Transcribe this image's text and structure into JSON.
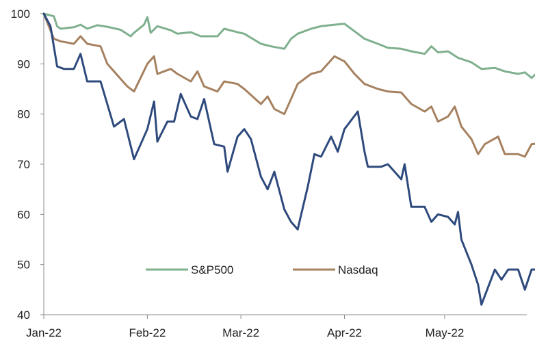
{
  "chart_data": {
    "type": "line",
    "title": "",
    "xlabel": "",
    "ylabel": "",
    "ylim": [
      40,
      100
    ],
    "yticks": [
      40,
      50,
      60,
      70,
      80,
      90,
      100
    ],
    "x_tick_labels": [
      "Jan-22",
      "Feb-22",
      "Mar-22",
      "Apr-22",
      "May-22"
    ],
    "x_tick_dates": [
      "2022-01-01",
      "2022-02-01",
      "2022-03-01",
      "2022-04-01",
      "2022-05-01"
    ],
    "grid": false,
    "legend_placement": "bottom-center, inside plot",
    "series": [
      {
        "name": "S&P500",
        "color": "#7fb08e",
        "in_legend": true,
        "points": [
          [
            "2022-01-01",
            100.0
          ],
          [
            "2022-01-04",
            99.5
          ],
          [
            "2022-01-05",
            97.5
          ],
          [
            "2022-01-06",
            97.0
          ],
          [
            "2022-01-10",
            97.3
          ],
          [
            "2022-01-12",
            97.8
          ],
          [
            "2022-01-14",
            97.0
          ],
          [
            "2022-01-17",
            97.7
          ],
          [
            "2022-01-20",
            97.4
          ],
          [
            "2022-01-24",
            96.8
          ],
          [
            "2022-01-27",
            95.5
          ],
          [
            "2022-01-28",
            96.2
          ],
          [
            "2022-01-31",
            97.8
          ],
          [
            "2022-02-01",
            99.3
          ],
          [
            "2022-02-02",
            96.2
          ],
          [
            "2022-02-04",
            97.5
          ],
          [
            "2022-02-08",
            96.7
          ],
          [
            "2022-02-10",
            96.0
          ],
          [
            "2022-02-14",
            96.3
          ],
          [
            "2022-02-17",
            95.5
          ],
          [
            "2022-02-22",
            95.5
          ],
          [
            "2022-02-24",
            97.0
          ],
          [
            "2022-02-28",
            96.3
          ],
          [
            "2022-03-02",
            96.0
          ],
          [
            "2022-03-07",
            94.0
          ],
          [
            "2022-03-10",
            93.5
          ],
          [
            "2022-03-14",
            93.0
          ],
          [
            "2022-03-16",
            95.0
          ],
          [
            "2022-03-18",
            96.0
          ],
          [
            "2022-03-22",
            97.0
          ],
          [
            "2022-03-25",
            97.5
          ],
          [
            "2022-03-29",
            97.8
          ],
          [
            "2022-04-01",
            98.0
          ],
          [
            "2022-04-04",
            96.5
          ],
          [
            "2022-04-07",
            95.0
          ],
          [
            "2022-04-11",
            94.0
          ],
          [
            "2022-04-14",
            93.2
          ],
          [
            "2022-04-18",
            93.0
          ],
          [
            "2022-04-21",
            92.5
          ],
          [
            "2022-04-25",
            92.0
          ],
          [
            "2022-04-27",
            93.5
          ],
          [
            "2022-04-29",
            92.3
          ],
          [
            "2022-05-02",
            92.5
          ],
          [
            "2022-05-05",
            91.2
          ],
          [
            "2022-05-09",
            90.3
          ],
          [
            "2022-05-12",
            89.0
          ],
          [
            "2022-05-16",
            89.2
          ],
          [
            "2022-05-19",
            88.5
          ],
          [
            "2022-05-23",
            88.0
          ],
          [
            "2022-05-25",
            88.3
          ],
          [
            "2022-05-27",
            87.2
          ],
          [
            "2022-05-30",
            89.0
          ]
        ]
      },
      {
        "name": "Nasdaq",
        "color": "#a68160",
        "in_legend": true,
        "points": [
          [
            "2022-01-01",
            100.0
          ],
          [
            "2022-01-04",
            95.0
          ],
          [
            "2022-01-06",
            94.5
          ],
          [
            "2022-01-10",
            94.0
          ],
          [
            "2022-01-12",
            95.5
          ],
          [
            "2022-01-14",
            94.0
          ],
          [
            "2022-01-18",
            93.5
          ],
          [
            "2022-01-20",
            90.0
          ],
          [
            "2022-01-24",
            87.0
          ],
          [
            "2022-01-26",
            85.5
          ],
          [
            "2022-01-28",
            84.5
          ],
          [
            "2022-02-01",
            90.0
          ],
          [
            "2022-02-03",
            91.5
          ],
          [
            "2022-02-04",
            88.0
          ],
          [
            "2022-02-08",
            89.0
          ],
          [
            "2022-02-10",
            88.0
          ],
          [
            "2022-02-14",
            86.5
          ],
          [
            "2022-02-16",
            88.5
          ],
          [
            "2022-02-18",
            85.5
          ],
          [
            "2022-02-22",
            84.5
          ],
          [
            "2022-02-24",
            86.5
          ],
          [
            "2022-02-28",
            86.0
          ],
          [
            "2022-03-02",
            85.0
          ],
          [
            "2022-03-07",
            82.0
          ],
          [
            "2022-03-09",
            83.5
          ],
          [
            "2022-03-11",
            81.0
          ],
          [
            "2022-03-14",
            80.0
          ],
          [
            "2022-03-16",
            83.0
          ],
          [
            "2022-03-18",
            86.0
          ],
          [
            "2022-03-22",
            88.0
          ],
          [
            "2022-03-25",
            88.5
          ],
          [
            "2022-03-29",
            91.5
          ],
          [
            "2022-04-01",
            90.5
          ],
          [
            "2022-04-04",
            88.0
          ],
          [
            "2022-04-07",
            86.0
          ],
          [
            "2022-04-11",
            85.0
          ],
          [
            "2022-04-14",
            84.5
          ],
          [
            "2022-04-18",
            84.3
          ],
          [
            "2022-04-21",
            82.0
          ],
          [
            "2022-04-25",
            80.5
          ],
          [
            "2022-04-27",
            81.5
          ],
          [
            "2022-04-29",
            78.5
          ],
          [
            "2022-05-02",
            79.5
          ],
          [
            "2022-05-04",
            81.5
          ],
          [
            "2022-05-06",
            77.5
          ],
          [
            "2022-05-09",
            75.0
          ],
          [
            "2022-05-11",
            72.0
          ],
          [
            "2022-05-13",
            74.0
          ],
          [
            "2022-05-17",
            75.5
          ],
          [
            "2022-05-19",
            72.0
          ],
          [
            "2022-05-23",
            72.0
          ],
          [
            "2022-05-25",
            71.5
          ],
          [
            "2022-05-27",
            74.0
          ],
          [
            "2022-05-30",
            74.2
          ]
        ]
      },
      {
        "name": "",
        "color": "#2e4a7d",
        "in_legend": false,
        "points": [
          [
            "2022-01-01",
            100.0
          ],
          [
            "2022-01-03",
            97.5
          ],
          [
            "2022-01-05",
            89.5
          ],
          [
            "2022-01-07",
            89.0
          ],
          [
            "2022-01-10",
            89.0
          ],
          [
            "2022-01-12",
            92.0
          ],
          [
            "2022-01-14",
            86.5
          ],
          [
            "2022-01-18",
            86.5
          ],
          [
            "2022-01-20",
            82.0
          ],
          [
            "2022-01-22",
            77.5
          ],
          [
            "2022-01-25",
            79.0
          ],
          [
            "2022-01-28",
            71.0
          ],
          [
            "2022-02-01",
            77.0
          ],
          [
            "2022-02-03",
            82.5
          ],
          [
            "2022-02-04",
            74.5
          ],
          [
            "2022-02-07",
            78.5
          ],
          [
            "2022-02-09",
            78.5
          ],
          [
            "2022-02-11",
            84.0
          ],
          [
            "2022-02-14",
            79.5
          ],
          [
            "2022-02-16",
            79.0
          ],
          [
            "2022-02-18",
            83.0
          ],
          [
            "2022-02-21",
            74.0
          ],
          [
            "2022-02-24",
            73.5
          ],
          [
            "2022-02-25",
            68.5
          ],
          [
            "2022-02-28",
            75.5
          ],
          [
            "2022-03-02",
            77.0
          ],
          [
            "2022-03-04",
            75.0
          ],
          [
            "2022-03-07",
            67.5
          ],
          [
            "2022-03-09",
            65.0
          ],
          [
            "2022-03-11",
            68.5
          ],
          [
            "2022-03-14",
            61.0
          ],
          [
            "2022-03-16",
            58.5
          ],
          [
            "2022-03-18",
            57.0
          ],
          [
            "2022-03-21",
            65.5
          ],
          [
            "2022-03-23",
            72.0
          ],
          [
            "2022-03-25",
            71.5
          ],
          [
            "2022-03-28",
            75.5
          ],
          [
            "2022-03-30",
            72.5
          ],
          [
            "2022-04-01",
            77.0
          ],
          [
            "2022-04-05",
            80.5
          ],
          [
            "2022-04-07",
            72.5
          ],
          [
            "2022-04-08",
            69.5
          ],
          [
            "2022-04-12",
            69.5
          ],
          [
            "2022-04-14",
            70.0
          ],
          [
            "2022-04-18",
            67.0
          ],
          [
            "2022-04-19",
            70.0
          ],
          [
            "2022-04-21",
            61.5
          ],
          [
            "2022-04-25",
            61.5
          ],
          [
            "2022-04-27",
            58.5
          ],
          [
            "2022-04-29",
            60.0
          ],
          [
            "2022-05-02",
            59.5
          ],
          [
            "2022-05-04",
            58.0
          ],
          [
            "2022-05-05",
            60.5
          ],
          [
            "2022-05-06",
            55.0
          ],
          [
            "2022-05-09",
            50.0
          ],
          [
            "2022-05-11",
            46.0
          ],
          [
            "2022-05-12",
            42.0
          ],
          [
            "2022-05-16",
            49.0
          ],
          [
            "2022-05-18",
            47.0
          ],
          [
            "2022-05-20",
            49.0
          ],
          [
            "2022-05-23",
            49.0
          ],
          [
            "2022-05-25",
            45.0
          ],
          [
            "2022-05-27",
            49.0
          ],
          [
            "2022-05-30",
            49.0
          ]
        ]
      }
    ]
  }
}
